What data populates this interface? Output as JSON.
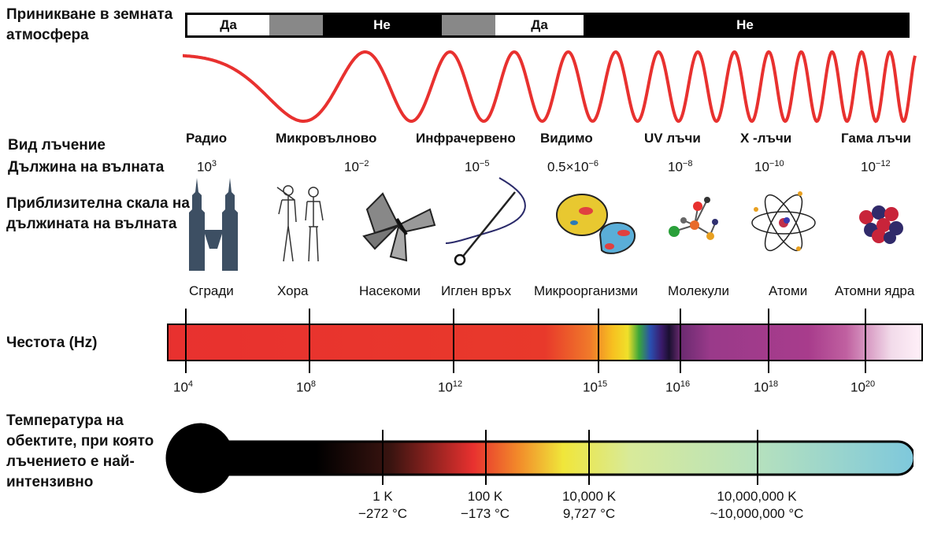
{
  "labels": {
    "atmosphere": "Приникване в земната атмосфера",
    "type": "Вид лъчение",
    "wavelength": "Дължина на вълната",
    "scale": "Приблизителна скала на дължината на вълната",
    "frequency": "Честота (Hz)",
    "temperature": "Температура на обектите, при която лъчението е най-интензивно"
  },
  "atmosphere": {
    "yes": "Да",
    "no": "Не"
  },
  "radiation_types": [
    "Радио",
    "Микровълново",
    "Инфрачервено",
    "Видимо",
    "UV лъчи",
    "X -лъчи",
    "Гама лъчи"
  ],
  "wavelengths": [
    {
      "base": "10",
      "exp": "3"
    },
    {
      "base": "10",
      "exp": "−2"
    },
    {
      "base": "10",
      "exp": "−5"
    },
    {
      "base": "0.5×10",
      "exp": "−6"
    },
    {
      "base": "10",
      "exp": "−8"
    },
    {
      "base": "10",
      "exp": "−10"
    },
    {
      "base": "10",
      "exp": "−12"
    }
  ],
  "scale_items": [
    "Сгради",
    "Хора",
    "Насекоми",
    "Иглен връх",
    "Микроорганизми",
    "Молекули",
    "Атоми",
    "Атомни ядра"
  ],
  "scale_icons": [
    "buildings-icon",
    "people-icon",
    "butterfly-icon",
    "needle-icon",
    "microorganism-icon",
    "molecule-icon",
    "atom-icon",
    "nucleus-icon"
  ],
  "frequencies": [
    {
      "base": "10",
      "exp": "4"
    },
    {
      "base": "10",
      "exp": "8"
    },
    {
      "base": "10",
      "exp": "12"
    },
    {
      "base": "10",
      "exp": "15"
    },
    {
      "base": "10",
      "exp": "16"
    },
    {
      "base": "10",
      "exp": "18"
    },
    {
      "base": "10",
      "exp": "20"
    }
  ],
  "temperatures": [
    {
      "k": "1 K",
      "c": "−272 °C"
    },
    {
      "k": "100 K",
      "c": "−173 °C"
    },
    {
      "k": "10,000 K",
      "c": "9,727 °C"
    },
    {
      "k": "10,000,000 K",
      "c": "~10,000,000 °C"
    }
  ],
  "colors": {
    "wave": "#e8312f",
    "gray_segment": "#888888",
    "thermo_end": "#7ec8dc"
  }
}
